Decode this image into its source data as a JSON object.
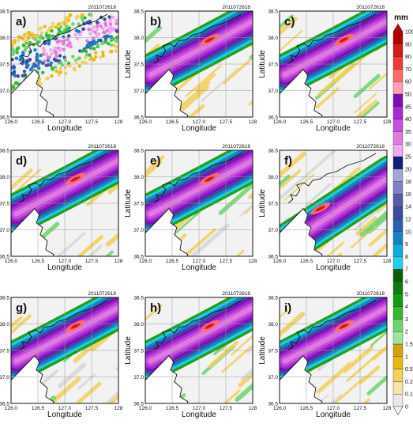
{
  "panels": [
    {
      "label": "a)",
      "date": "2011072618"
    },
    {
      "label": "b)",
      "date": "2011072618"
    },
    {
      "label": "c)",
      "date": "2011072618"
    },
    {
      "label": "d)",
      "date": "2011072618"
    },
    {
      "label": "e)",
      "date": "2011072618"
    },
    {
      "label": "f)",
      "date": "2011072618"
    },
    {
      "label": "g)",
      "date": "2011072618"
    },
    {
      "label": "h)",
      "date": "2011072618"
    },
    {
      "label": "i)",
      "date": "2011072618"
    }
  ],
  "axes": {
    "xlabel": "Longitude",
    "ylabel": "Latitude",
    "xticks": [
      "126.0",
      "126.5",
      "127.0",
      "127.5",
      "128"
    ],
    "yticks": [
      "38.5",
      "38.0",
      "37.5",
      "37.0",
      "36.5"
    ]
  },
  "colorbar": {
    "unit": "mm",
    "levels": [
      "100",
      "90",
      "80",
      "70",
      "60",
      "50",
      "45",
      "40",
      "35",
      "30",
      "25",
      "20",
      "18",
      "16",
      "14",
      "12",
      "10",
      "9",
      "8",
      "7",
      "6",
      "5",
      "4",
      "3",
      "2",
      "1.5",
      "1",
      "0.5",
      "0.2",
      "0.1",
      "0"
    ],
    "colors": [
      "#e8e8e8",
      "#f5e3a8",
      "#f2d15c",
      "#e8b810",
      "#d3a010",
      "#9fe39f",
      "#6fd46f",
      "#31b931",
      "#129a12",
      "#0f7b0f",
      "#0a5e0a",
      "#20d0e8",
      "#12a9dc",
      "#1581c8",
      "#2a5fb2",
      "#3d4aa0",
      "#575aaa",
      "#8080c4",
      "#a4a4da",
      "#0f1f7c",
      "#f0a8f0",
      "#e07ae0",
      "#c74ee0",
      "#a82ad0",
      "#7c0fb8",
      "#ff9fb8",
      "#ff6a6a",
      "#f03a3a",
      "#d41a1a",
      "#b40000"
    ]
  }
}
